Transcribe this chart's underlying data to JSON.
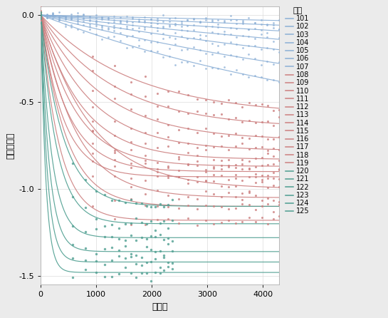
{
  "xlabel": "小时数",
  "ylabel": "功率下降値",
  "legend_title": "设备",
  "xlim": [
    0,
    4300
  ],
  "ylim": [
    -1.55,
    0.05
  ],
  "yticks": [
    0,
    -0.5,
    -1.0,
    -1.5
  ],
  "xticks": [
    0,
    1000,
    2000,
    3000,
    4000
  ],
  "bg_color": "#ebebeb",
  "plot_bg_color": "#ffffff",
  "devices": [
    101,
    102,
    103,
    104,
    105,
    106,
    107,
    108,
    109,
    110,
    111,
    112,
    113,
    114,
    115,
    116,
    117,
    118,
    119,
    120,
    121,
    122,
    123,
    124,
    125
  ],
  "blue_devices": [
    101,
    102,
    103,
    104,
    105,
    106,
    107
  ],
  "red_devices": [
    108,
    109,
    110,
    111,
    112,
    113,
    114,
    115,
    116,
    117,
    118,
    119
  ],
  "teal_devices": [
    120,
    121,
    122,
    123,
    124,
    125
  ],
  "blue_color": "#8bafd6",
  "red_color": "#cc7f7f",
  "teal_color": "#4d9e90",
  "blue_rates": [
    3e-05,
    4.5e-05,
    6e-05,
    8e-05,
    0.0001,
    0.00013,
    0.000165
  ],
  "blue_asym": [
    -0.26,
    -0.33,
    -0.4,
    -0.48,
    -0.57,
    -0.65,
    -0.75
  ],
  "red_rates": [
    0.0006,
    0.00075,
    0.0009,
    0.0011,
    0.00135,
    0.0016,
    0.002,
    0.0025,
    0.0011,
    0.0016,
    0.0022,
    0.003
  ],
  "red_asym": [
    -0.58,
    -0.65,
    -0.72,
    -0.78,
    -0.83,
    -0.87,
    -0.9,
    -0.93,
    -1.0,
    -1.05,
    -1.1,
    -1.18
  ],
  "teal_rates": [
    0.0025,
    0.0035,
    0.005,
    0.0065,
    0.0085,
    0.011
  ],
  "teal_asym": [
    -1.1,
    -1.2,
    -1.28,
    -1.36,
    -1.42,
    -1.48
  ],
  "max_hours": 4300
}
